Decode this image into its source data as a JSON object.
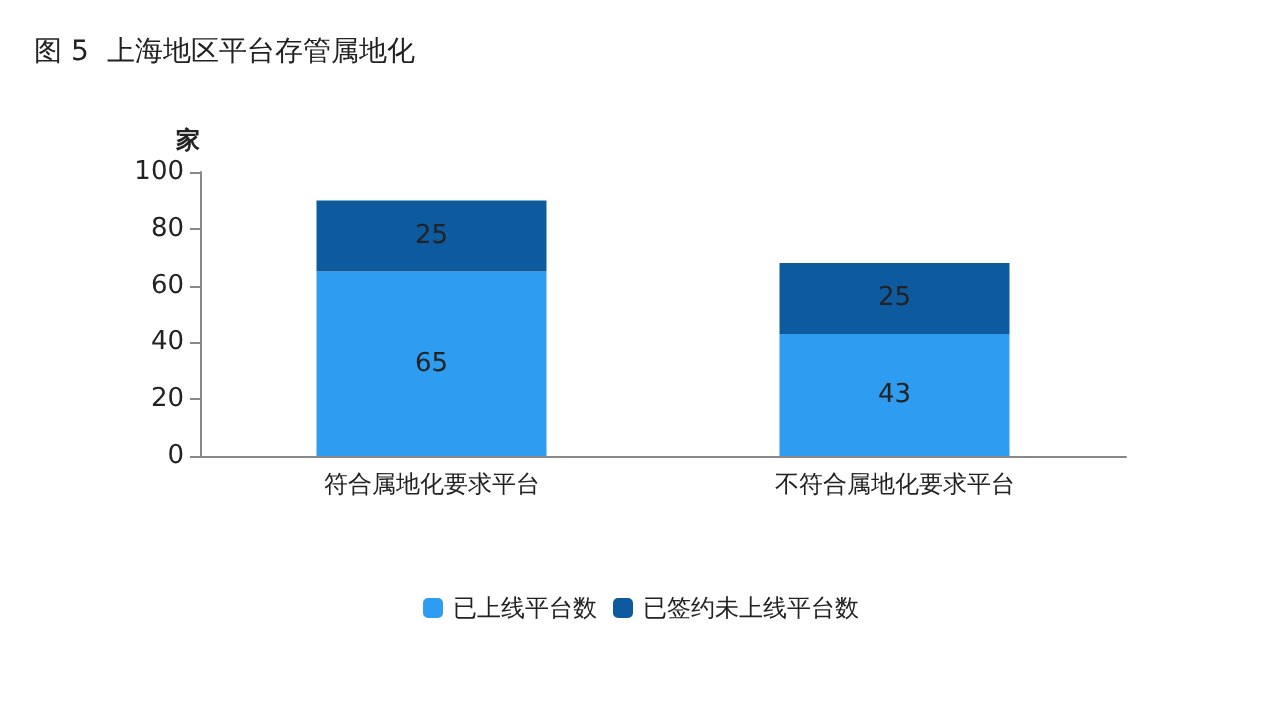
{
  "chart_data": {
    "type": "bar",
    "title": "图 5  上海地区平台存管属地化",
    "ylabel": "家",
    "categories": [
      "符合属地化要求平台",
      "不符合属地化要求平台"
    ],
    "stacked": true,
    "series": [
      {
        "name": "已上线平台数",
        "color": "#2e9cf0",
        "values": [
          65,
          43
        ]
      },
      {
        "name": "已签约未上线平台数",
        "color": "#0e5a9e",
        "values": [
          25,
          25
        ]
      }
    ],
    "ylim": [
      0,
      100
    ],
    "yticks": [
      0,
      20,
      40,
      60,
      80,
      100
    ],
    "grid": false,
    "legend": "bottom",
    "data_labels": true
  }
}
